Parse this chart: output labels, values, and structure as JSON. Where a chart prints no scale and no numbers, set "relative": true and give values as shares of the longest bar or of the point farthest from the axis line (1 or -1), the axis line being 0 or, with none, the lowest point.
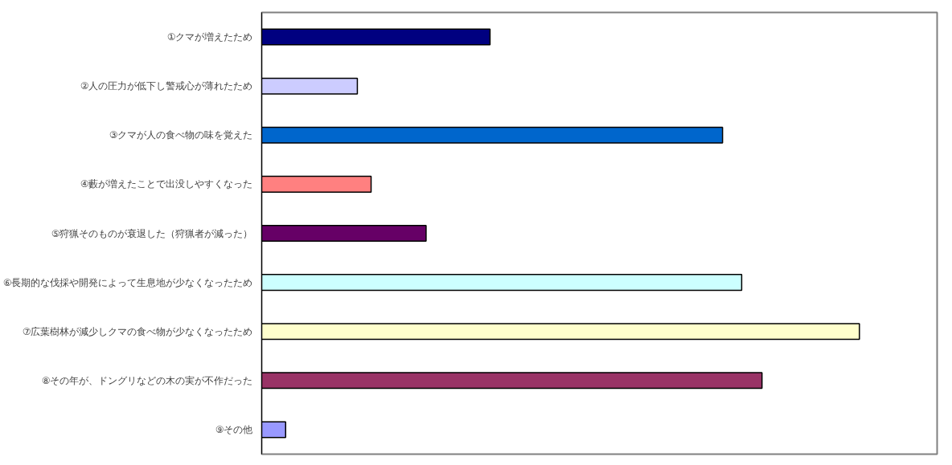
{
  "chart_data": {
    "type": "bar",
    "orientation": "horizontal",
    "relative": true,
    "categories": [
      "①クマが増えたため",
      "②人の圧力が低下し警戒心が薄れたため",
      "③クマが人の食べ物の味を覚えた",
      "④藪が増えたことで出没しやすくなった",
      "⑤狩猟そのものが衰退した（狩猟者が減った）",
      "⑥長期的な伐採や開発によって生息地が少なくなったため",
      "⑦広葉樹林が減少しクマの食べ物が少なくなったため",
      "⑧その年が、ドングリなどの木の実が不作だった",
      "⑨その他"
    ],
    "values": [
      0.382,
      0.16,
      0.771,
      0.183,
      0.275,
      0.803,
      1,
      0.837,
      0.04
    ],
    "colors": [
      "#000080",
      "#ccccff",
      "#0066cc",
      "#ff8080",
      "#660066",
      "#ccffff",
      "#ffffcc",
      "#993366",
      "#9999ff"
    ],
    "grid": false
  }
}
